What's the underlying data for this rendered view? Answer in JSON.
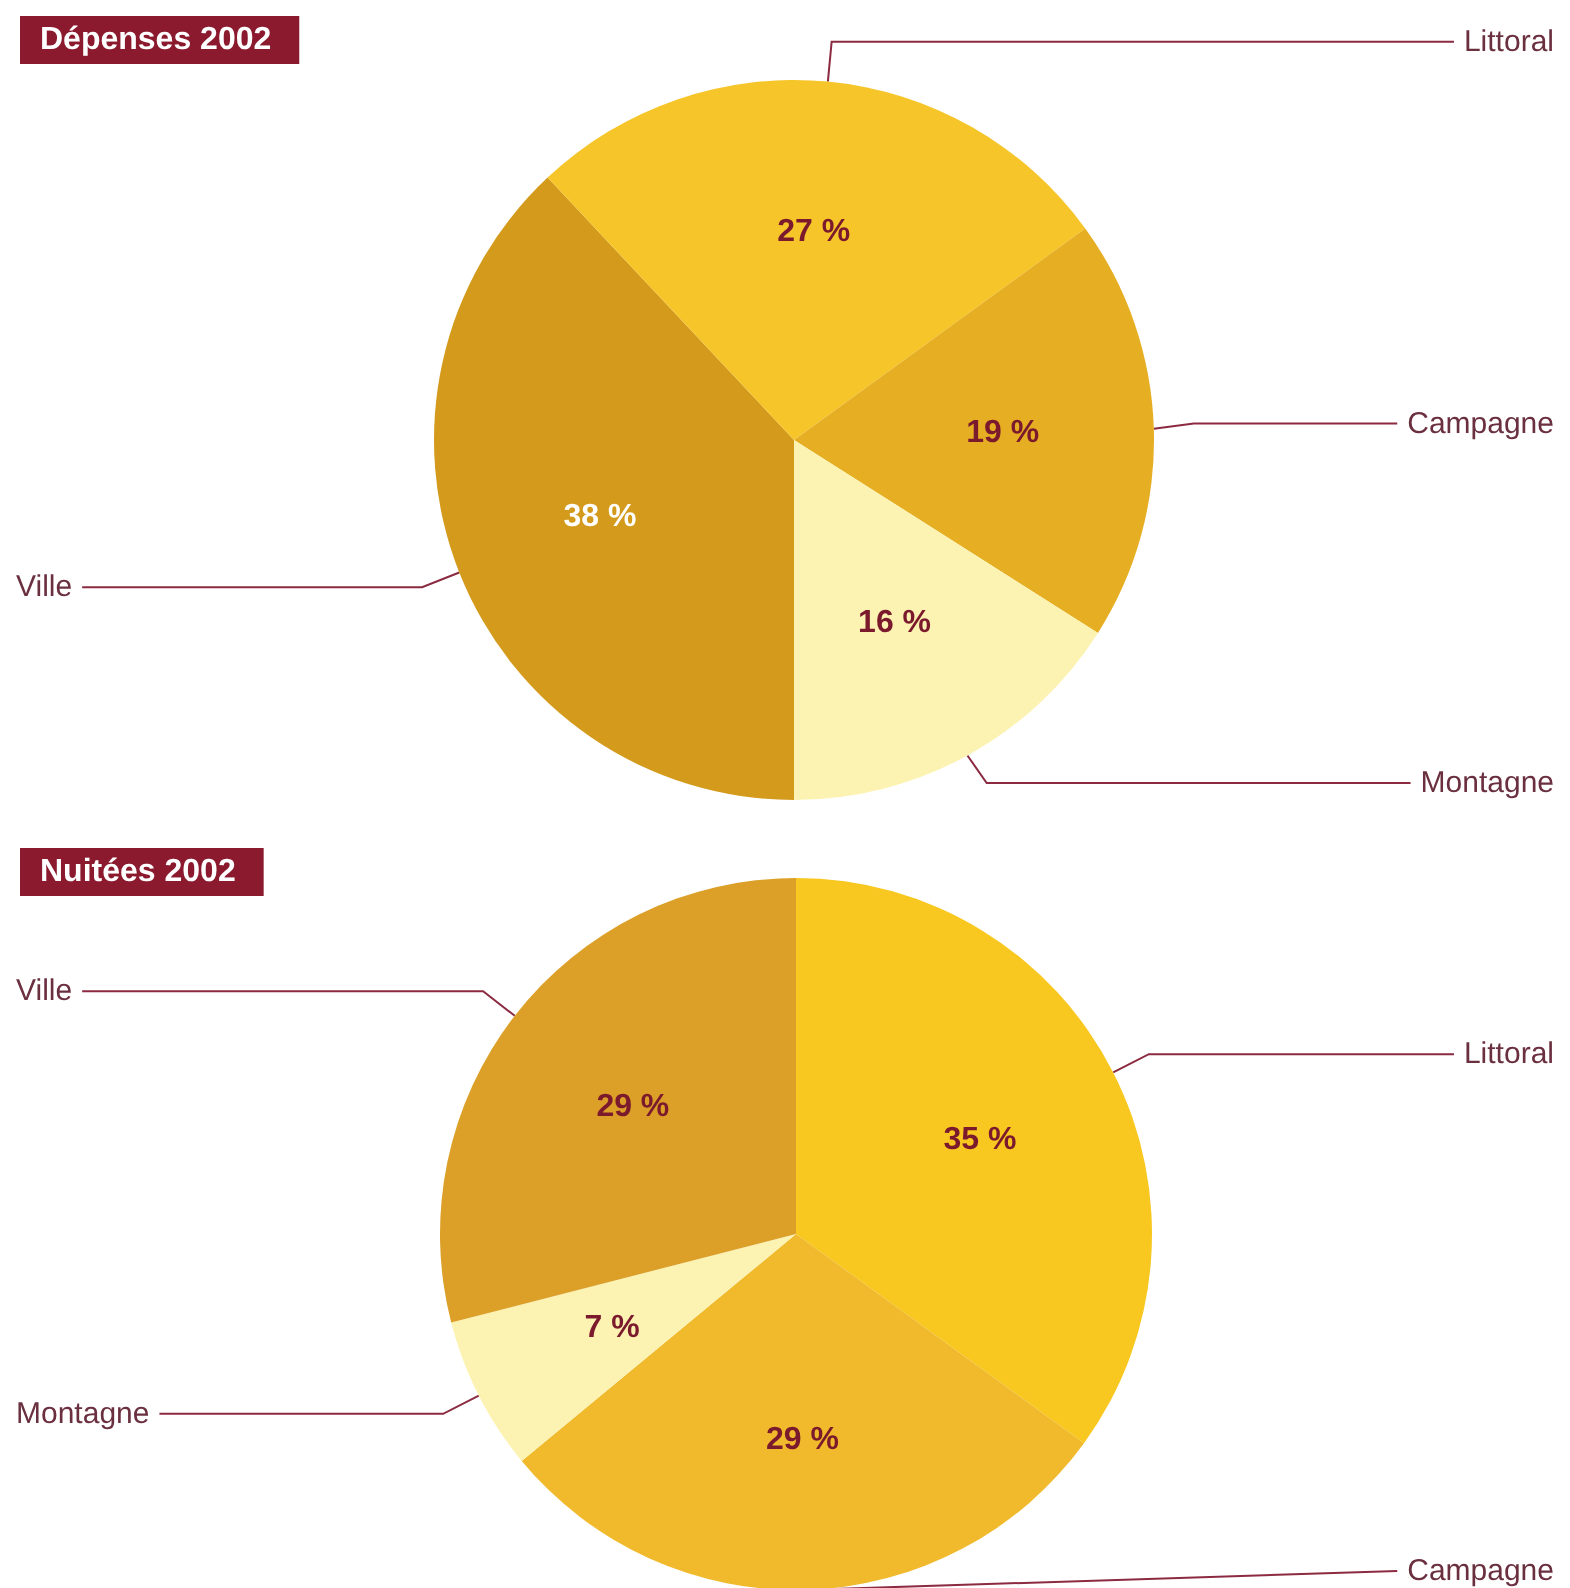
{
  "chart_data": [
    {
      "type": "pie",
      "title": "Dépenses 2002",
      "categories": [
        "Ville",
        "Littoral",
        "Campagne",
        "Montagne"
      ],
      "values": [
        38,
        27,
        19,
        16
      ],
      "colors": [
        "#d49a1c",
        "#f6c52a",
        "#e6ae22",
        "#fcf3b2"
      ],
      "value_labels": [
        "38 %",
        "27 %",
        "19 %",
        "16 %"
      ]
    },
    {
      "type": "pie",
      "title": "Nuitées 2002",
      "categories": [
        "Littoral",
        "Campagne",
        "Montagne",
        "Ville"
      ],
      "values": [
        35,
        29,
        7,
        29
      ],
      "colors": [
        "#f8c820",
        "#f0ba2c",
        "#fcf3b2",
        "#dca028"
      ],
      "value_labels": [
        "35 %",
        "29 %",
        "7 %",
        "29 %"
      ]
    }
  ]
}
